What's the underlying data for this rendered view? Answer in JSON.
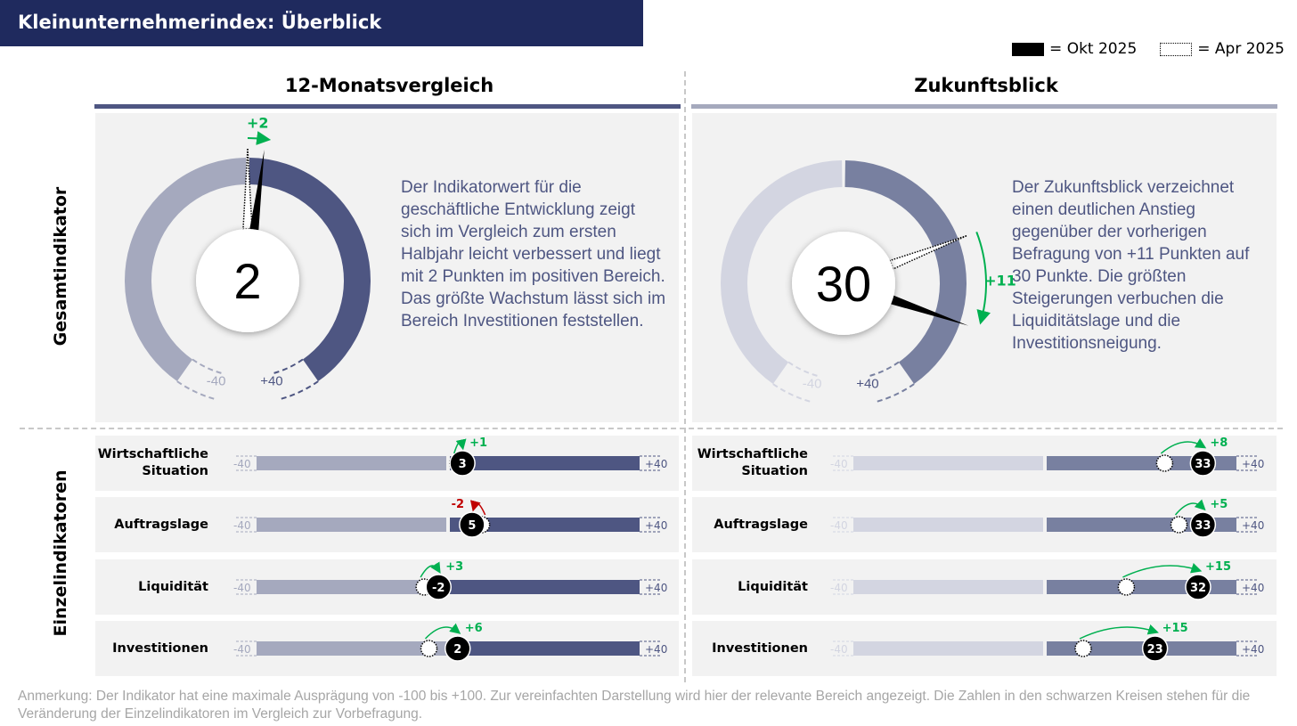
{
  "title": "Kleinunternehmerindex: Überblick",
  "legend": {
    "okt_label": "= Okt 2025",
    "apr_label": "= Apr 2025"
  },
  "columns": [
    "12-Monatsvergleich",
    "Zukunftsblick"
  ],
  "row_labels": [
    "Gesamtindikator",
    "Einzelindikatoren"
  ],
  "colors": {
    "left_neg": "#a5a9be",
    "left_pos": "#4e5682",
    "right_neg": "#d3d5e1",
    "right_pos": "#7880a0",
    "up": "#00b050",
    "down": "#c00000",
    "title_bg": "#1f2a5e"
  },
  "chart_data": {
    "type": "gauge",
    "range": [
      -40,
      40
    ],
    "range_labels": [
      "-40",
      "+40"
    ],
    "gauges": [
      {
        "value": 2,
        "prev": 0,
        "change": "+2",
        "text": "Der Indikatorwert für die geschäftliche Entwicklung zeigt sich im Vergleich zum ersten Halbjahr leicht verbessert und liegt mit 2 Punkten im positiven Bereich. Das größte Wachstum lässt sich im Bereich Investitionen feststellen."
      },
      {
        "value": 30,
        "prev": 19,
        "change": "+11",
        "text": "Der Zukunftsblick verzeichnet einen deutlichen Anstieg gegenüber der vorherigen Befragung von +11 Punkten auf 30 Punkte. Die größten Steigerungen verbuchen die Liquiditätslage und die Investitionsneigung."
      }
    ],
    "indicators": [
      [
        {
          "label": "Wirtschaftliche Situation",
          "value": 3,
          "prev": 2,
          "change": "+1"
        },
        {
          "label": "Auftragslage",
          "value": 5,
          "prev": 7,
          "change": "-2"
        },
        {
          "label": "Liquidität",
          "value": -2,
          "prev": -5,
          "change": "+3"
        },
        {
          "label": "Investitionen",
          "value": 2,
          "prev": -4,
          "change": "+6"
        }
      ],
      [
        {
          "label": "Wirtschaftliche Situation",
          "value": 33,
          "prev": 25,
          "change": "+8"
        },
        {
          "label": "Auftragslage",
          "value": 33,
          "prev": 28,
          "change": "+5"
        },
        {
          "label": "Liquidität",
          "value": 32,
          "prev": 17,
          "change": "+15"
        },
        {
          "label": "Investitionen",
          "value": 23,
          "prev": 8,
          "change": "+15"
        }
      ]
    ]
  },
  "note": "Anmerkung: Der Indikator hat eine maximale Ausprägung von -100 bis +100. Zur vereinfachten Darstellung wird hier der relevante Bereich angezeigt. Die Zahlen in den schwarzen Kreisen stehen für die Veränderung der Einzelindikatoren im Vergleich zur Vorbefragung."
}
